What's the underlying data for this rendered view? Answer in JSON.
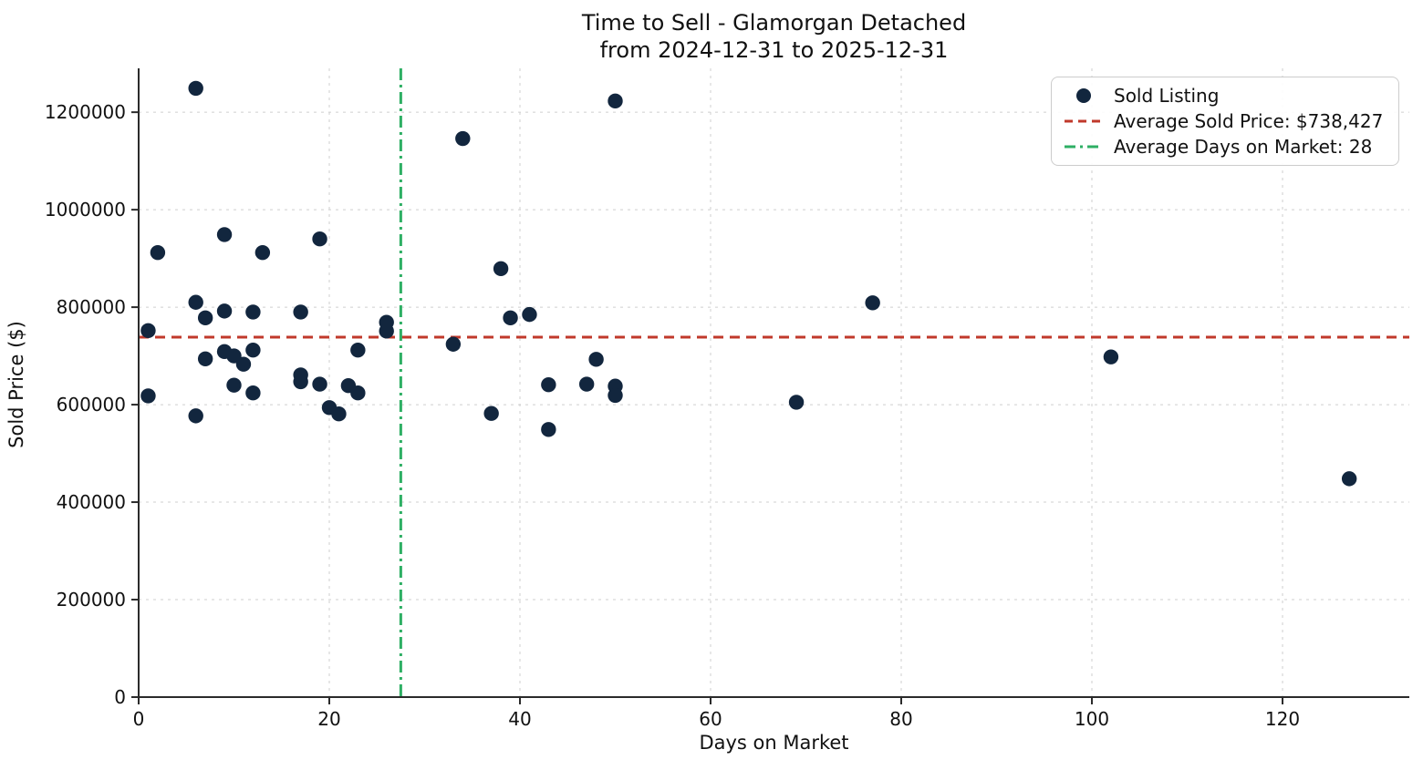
{
  "title": {
    "line1": "Time to Sell - Glamorgan Detached",
    "line2": "from 2024-12-31 to 2025-12-31"
  },
  "legend": {
    "sold_listing_label": "Sold Listing",
    "avg_price_label": "Average Sold Price: $738,427",
    "avg_days_label": "Average Days on Market: 28"
  },
  "chart_data": {
    "type": "scatter",
    "title": "Time to Sell - Glamorgan Detached from 2024-12-31 to 2025-12-31",
    "xlabel": "Days on Market",
    "ylabel": "Sold Price ($)",
    "xlim": [
      0,
      133.3
    ],
    "ylim": [
      0,
      1290000
    ],
    "x_ticks": [
      0,
      20,
      40,
      60,
      80,
      100,
      120
    ],
    "y_ticks": [
      0,
      200000,
      400000,
      600000,
      800000,
      1000000,
      1200000
    ],
    "grid": true,
    "legend_position": "upper right",
    "avg_sold_price": 738427,
    "avg_days_on_market": 28,
    "avg_days_line_x": 27.5,
    "series": [
      {
        "name": "Sold Listing",
        "points": [
          [
            6,
            1249000
          ],
          [
            50,
            1223000
          ],
          [
            34,
            1146000
          ],
          [
            2,
            912000
          ],
          [
            9,
            949000
          ],
          [
            13,
            912000
          ],
          [
            19,
            940000
          ],
          [
            38,
            879000
          ],
          [
            1,
            752000
          ],
          [
            6,
            810000
          ],
          [
            7,
            778000
          ],
          [
            9,
            792000
          ],
          [
            12,
            790000
          ],
          [
            17,
            790000
          ],
          [
            26,
            769000
          ],
          [
            26,
            751000
          ],
          [
            33,
            724000
          ],
          [
            39,
            778000
          ],
          [
            41,
            785000
          ],
          [
            77,
            809000
          ],
          [
            102,
            698000
          ],
          [
            1,
            618000
          ],
          [
            6,
            577000
          ],
          [
            7,
            694000
          ],
          [
            9,
            709000
          ],
          [
            10,
            700000
          ],
          [
            11,
            683000
          ],
          [
            12,
            712000
          ],
          [
            10,
            640000
          ],
          [
            12,
            624000
          ],
          [
            17,
            661000
          ],
          [
            17,
            647000
          ],
          [
            19,
            642000
          ],
          [
            20,
            594000
          ],
          [
            21,
            581000
          ],
          [
            22,
            639000
          ],
          [
            23,
            624000
          ],
          [
            23,
            712000
          ],
          [
            37,
            582000
          ],
          [
            43,
            641000
          ],
          [
            43,
            549000
          ],
          [
            47,
            642000
          ],
          [
            48,
            693000
          ],
          [
            50,
            638000
          ],
          [
            50,
            619000
          ],
          [
            69,
            605000
          ],
          [
            127,
            448000
          ]
        ]
      }
    ],
    "colors": {
      "dot": "#12263e",
      "avg_price_line": "#c0392b",
      "avg_days_line": "#2eaf64",
      "grid": "#cfcfcf",
      "spine": "#2b2b2b",
      "text": "#111111"
    }
  }
}
